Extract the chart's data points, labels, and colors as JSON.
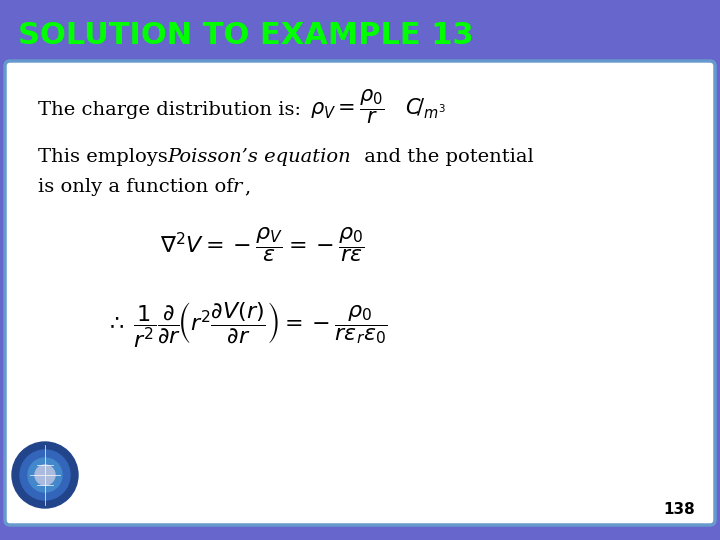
{
  "title": "SOLUTION TO EXAMPLE 13",
  "title_color": "#00ff00",
  "header_bg_color": "#6666cc",
  "body_bg_color": "#ffffff",
  "border_color": "#6699cc",
  "page_number": "138",
  "line1": "The charge distribution is:",
  "line2_part1": "This employs ",
  "line2_italic": "Poisson’s equation",
  "line2_part2": " and the potential",
  "line3": "is only a function of ",
  "line3_italic": "r",
  "line3_end": ","
}
